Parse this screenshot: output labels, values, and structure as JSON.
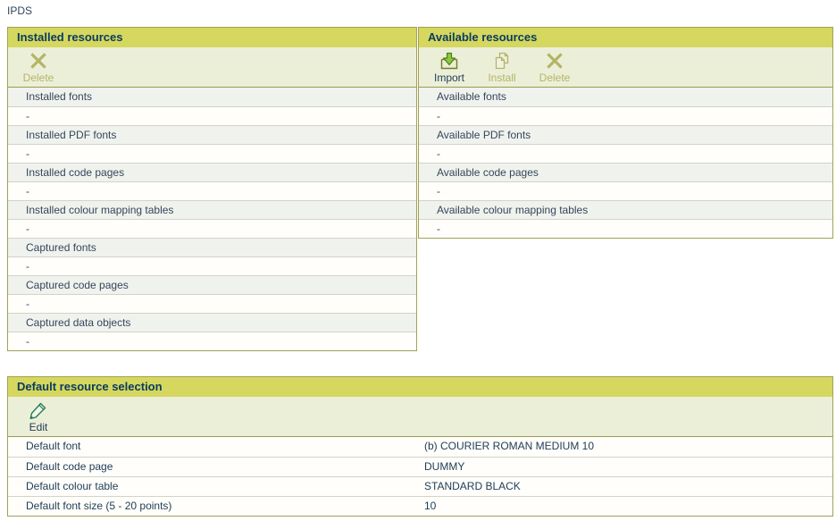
{
  "page": {
    "title": "IPDS"
  },
  "colors": {
    "panel_border": "#a2a256",
    "header_bg": "#d5d75f",
    "header_text": "#0a3c60",
    "toolbar_bg": "#ecefd8",
    "row_gray_bg": "#f0f2ee",
    "row_white_bg": "#fffefb",
    "row_text": "#35475a",
    "disabled_text": "#b4b468",
    "import_arrow_green": "#8cc63e",
    "edit_pencil_green": "#2c7a52"
  },
  "panels": {
    "installed": {
      "title": "Installed resources",
      "toolbar": [
        {
          "label": "Delete",
          "icon": "delete-icon",
          "enabled": false
        }
      ],
      "rows": [
        {
          "label": "Installed fonts",
          "value": "-"
        },
        {
          "label": "Installed PDF fonts",
          "value": "-"
        },
        {
          "label": "Installed code pages",
          "value": "-"
        },
        {
          "label": "Installed colour mapping tables",
          "value": "-"
        },
        {
          "label": "Captured fonts",
          "value": "-"
        },
        {
          "label": "Captured code pages",
          "value": "-"
        },
        {
          "label": "Captured data objects",
          "value": "-"
        }
      ]
    },
    "available": {
      "title": "Available resources",
      "toolbar": [
        {
          "label": "Import",
          "icon": "import-icon",
          "enabled": true
        },
        {
          "label": "Install",
          "icon": "install-icon",
          "enabled": false
        },
        {
          "label": "Delete",
          "icon": "delete-icon",
          "enabled": false
        }
      ],
      "rows": [
        {
          "label": "Available fonts",
          "value": "-"
        },
        {
          "label": "Available PDF fonts",
          "value": "-"
        },
        {
          "label": "Available code pages",
          "value": "-"
        },
        {
          "label": "Available colour mapping tables",
          "value": "-"
        }
      ]
    },
    "defaults": {
      "title": "Default resource selection",
      "toolbar": [
        {
          "label": "Edit",
          "icon": "edit-icon",
          "enabled": true
        }
      ],
      "rows": [
        {
          "label": "Default font",
          "value": "(b) COURIER ROMAN MEDIUM 10"
        },
        {
          "label": "Default code page",
          "value": "DUMMY"
        },
        {
          "label": "Default colour table",
          "value": "STANDARD BLACK"
        },
        {
          "label": "Default font size (5 - 20 points)",
          "value": "10"
        }
      ]
    }
  }
}
